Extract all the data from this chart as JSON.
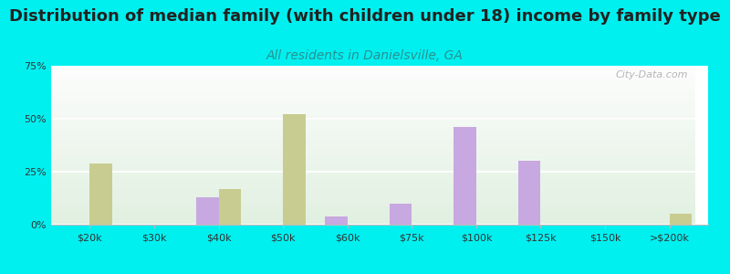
{
  "title": "Distribution of median family (with children under 18) income by family type",
  "subtitle": "All residents in Danielsville, GA",
  "categories": [
    "$20k",
    "$30k",
    "$40k",
    "$50k",
    "$60k",
    "$75k",
    "$100k",
    "$125k",
    "$150k",
    ">$200k"
  ],
  "married_values": [
    0,
    0,
    13,
    0,
    4,
    10,
    46,
    30,
    0,
    0
  ],
  "female_values": [
    29,
    0,
    17,
    52,
    0,
    0,
    0,
    0,
    0,
    5
  ],
  "married_color": "#c8a8e0",
  "female_color": "#c8cc90",
  "bg_outer": "#00f0f0",
  "ylim": [
    0,
    75
  ],
  "yticks": [
    0,
    25,
    50,
    75
  ],
  "ytick_labels": [
    "0%",
    "25%",
    "50%",
    "75%"
  ],
  "bar_width": 0.35,
  "title_fontsize": 13,
  "subtitle_fontsize": 10,
  "title_color": "#222222",
  "subtitle_color": "#2a9090",
  "watermark": "City-Data.com",
  "tick_fontsize": 8,
  "legend_fontsize": 9
}
